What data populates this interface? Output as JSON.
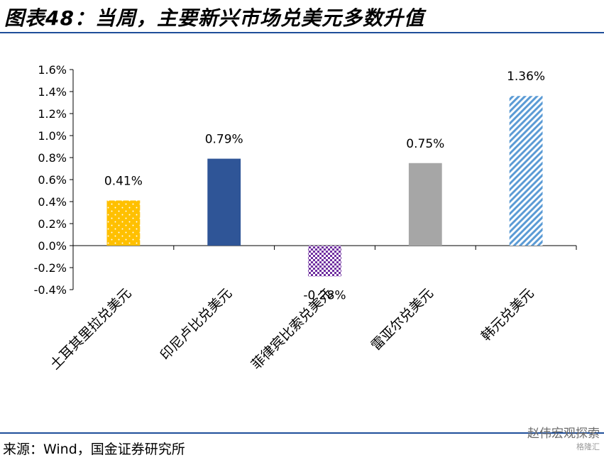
{
  "header": {
    "title": "图表48：当周，主要新兴市场兑美元多数升值"
  },
  "footer": {
    "source": "来源：Wind，国金证券研究所"
  },
  "watermark": {
    "main": "赵伟宏观探索",
    "sub": "格隆汇"
  },
  "chart_data": {
    "type": "bar",
    "title": "",
    "xlabel": "",
    "ylabel": "",
    "ylim": [
      -0.4,
      1.6
    ],
    "yticks": [
      1.6,
      1.4,
      1.2,
      1.0,
      0.8,
      0.6,
      0.4,
      0.2,
      0.0,
      -0.2,
      -0.4
    ],
    "ytick_labels": [
      "1.6%",
      "1.4%",
      "1.2%",
      "1.0%",
      "0.8%",
      "0.6%",
      "0.4%",
      "0.2%",
      "0.0%",
      "-0.2%",
      "-0.4%"
    ],
    "grid": false,
    "legend": "none",
    "categories": [
      "土耳其里拉兑美元",
      "印尼卢比兑美元",
      "菲律宾比索兑美元",
      "雷亚尔兑美元",
      "韩元兑美元"
    ],
    "values": [
      0.41,
      0.79,
      -0.28,
      0.75,
      1.36
    ],
    "data_labels": [
      "0.41%",
      "0.79%",
      "-0.28%",
      "0.75%",
      "1.36%"
    ],
    "colors": [
      "#ffc000",
      "#2f5597",
      "#7030a0",
      "#a6a6a6",
      "#5b9bd5"
    ],
    "fills": [
      "dotted",
      "solid",
      "checker",
      "solid",
      "diagonal-stripes"
    ]
  }
}
